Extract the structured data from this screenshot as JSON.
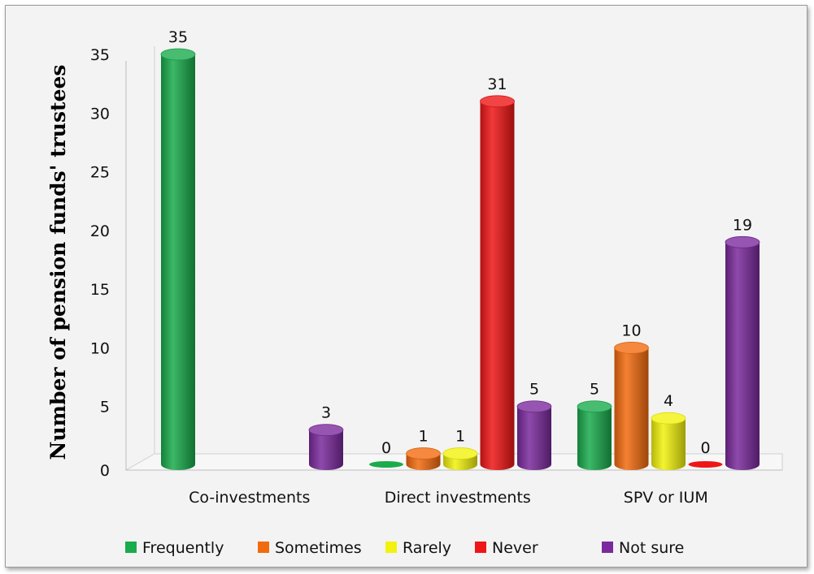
{
  "chart_data": {
    "type": "bar",
    "style": "3d-cylinder",
    "categories": [
      "Co-investments",
      "Direct investments",
      "SPV or IUM"
    ],
    "series": [
      {
        "name": "Frequently",
        "color": "#1aab4c",
        "values": [
          35,
          0,
          5
        ]
      },
      {
        "name": "Sometimes",
        "color": "#f26b0f",
        "values": [
          null,
          1,
          10
        ]
      },
      {
        "name": "Rarely",
        "color": "#f2f20e",
        "values": [
          null,
          1,
          4
        ]
      },
      {
        "name": "Never",
        "color": "#ee1616",
        "values": [
          null,
          31,
          0
        ]
      },
      {
        "name": "Not sure",
        "color": "#7a2a9c",
        "values": [
          3,
          5,
          19
        ]
      }
    ],
    "xlabel": "",
    "ylabel": "Number of pension funds' trustees",
    "ylim": [
      0,
      35
    ],
    "yticks": [
      0,
      5,
      10,
      15,
      20,
      25,
      30,
      35
    ],
    "grid": false,
    "legend_position": "bottom"
  }
}
